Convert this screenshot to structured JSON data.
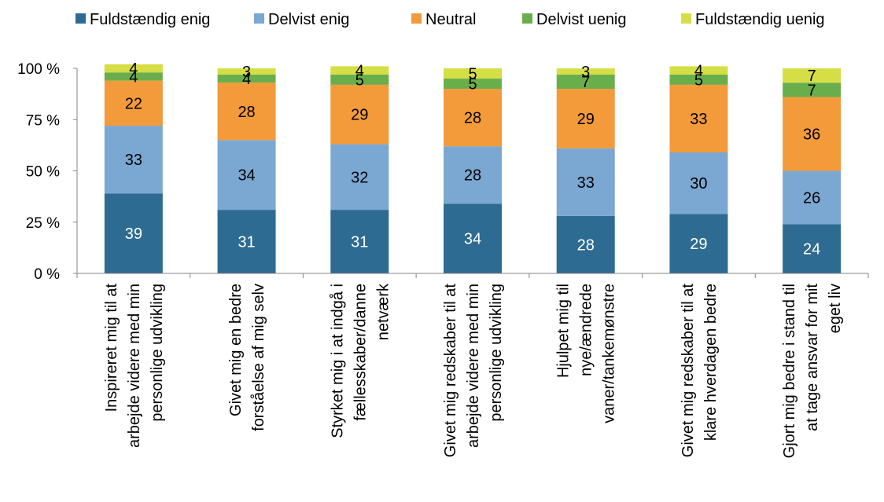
{
  "chart_data": {
    "type": "bar",
    "stacked": true,
    "categories": [
      [
        "Inspireret mig til at",
        "arbejde videre med min",
        "personlige udvikling"
      ],
      [
        "Givet mig en bedre",
        "forståelse af mig selv"
      ],
      [
        "Styrket mig i at indgå i",
        "fællesskaber/danne",
        "netværk"
      ],
      [
        "Givet mig redskaber til at",
        "arbejde videre med min",
        "personlige udvikling"
      ],
      [
        "Hjulpet mig til",
        "nye/ændrede",
        "vaner/tankemønstre"
      ],
      [
        "Givet mig redskaber til at",
        "klare hverdagen bedre"
      ],
      [
        "Gjort mig bedre i stand til",
        "at tage ansvar for mit",
        "eget liv"
      ]
    ],
    "series": [
      {
        "name": "Fuldstændig enig",
        "color": "#2E6B92",
        "label_color": "#ffffff",
        "values": [
          39,
          31,
          31,
          34,
          28,
          29,
          24
        ]
      },
      {
        "name": "Delvist enig",
        "color": "#7BA7D3",
        "label_color": "#000000",
        "values": [
          33,
          34,
          32,
          28,
          33,
          30,
          26
        ]
      },
      {
        "name": "Neutral",
        "color": "#F39A3A",
        "label_color": "#000000",
        "values": [
          22,
          28,
          29,
          28,
          29,
          33,
          36
        ]
      },
      {
        "name": "Delvist uenig",
        "color": "#6AAE4B",
        "label_color": "#000000",
        "values": [
          4,
          4,
          5,
          5,
          7,
          5,
          7
        ]
      },
      {
        "name": "Fuldstændig uenig",
        "color": "#D6DE45",
        "label_color": "#000000",
        "values": [
          4,
          3,
          4,
          5,
          3,
          4,
          7
        ]
      }
    ],
    "yticks": [
      "0 %",
      "25 %",
      "50 %",
      "75 %",
      "100 %"
    ],
    "ytick_values": [
      0,
      25,
      50,
      75,
      100
    ],
    "ylim": [
      0,
      100
    ],
    "legend_position": "top",
    "grid": false
  }
}
